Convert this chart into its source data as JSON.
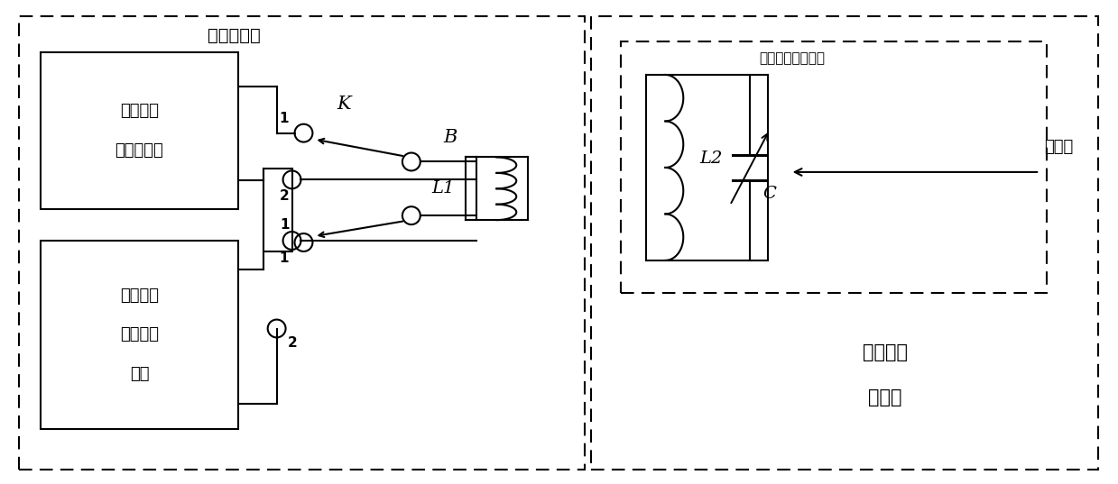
{
  "fig_width": 12.39,
  "fig_height": 5.37,
  "bg_color": "#ffffff",
  "title_left": "外部控制器",
  "title_right1": "无线无源",
  "title_right2": "传感器",
  "box1_line1": "脉冲激励",
  "box1_line2": "信号发生器",
  "box2_line1": "谐振信号",
  "box2_line2": "周期测量",
  "box2_line3": "电路",
  "label_K": "K",
  "label_B": "B",
  "label_L1": "L1",
  "label_L2": "L2",
  "label_C": "C",
  "label_sensor": "电容或电感传感器",
  "label_measure": "测量值"
}
